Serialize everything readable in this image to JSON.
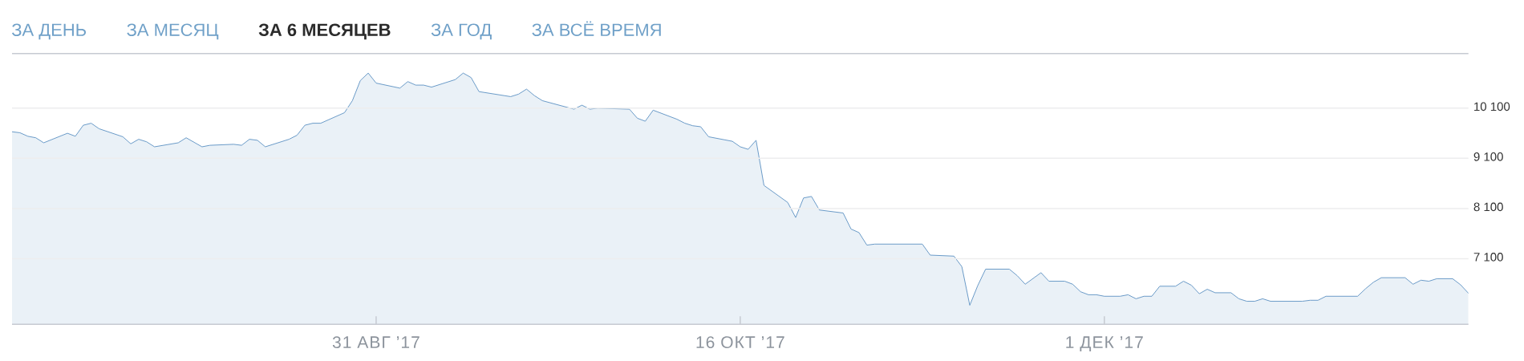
{
  "chart_data": {
    "type": "area",
    "title": "ЗА 6 МЕСЯЦЕВ",
    "annotations": [
      "ЗА ДЕНЬ",
      "ЗА МЕСЯЦ",
      "ЗА ГОД",
      "ЗА ВСЁ ВРЕМЯ"
    ],
    "x": [
      "2017-07-16",
      "2017-07-17",
      "2017-07-18",
      "2017-07-19",
      "2017-07-20",
      "2017-07-23",
      "2017-07-24",
      "2017-07-25",
      "2017-07-26",
      "2017-07-27",
      "2017-07-30",
      "2017-07-31",
      "2017-08-01",
      "2017-08-02",
      "2017-08-03",
      "2017-08-06",
      "2017-08-07",
      "2017-08-09",
      "2017-08-10",
      "2017-08-13",
      "2017-08-14",
      "2017-08-15",
      "2017-08-16",
      "2017-08-17",
      "2017-08-20",
      "2017-08-21",
      "2017-08-22",
      "2017-08-23",
      "2017-08-24",
      "2017-08-27",
      "2017-08-28",
      "2017-08-29",
      "2017-08-30",
      "2017-08-31",
      "2017-09-03",
      "2017-09-04",
      "2017-09-05",
      "2017-09-06",
      "2017-09-07",
      "2017-09-10",
      "2017-09-11",
      "2017-09-12",
      "2017-09-13",
      "2017-09-17",
      "2017-09-18",
      "2017-09-19",
      "2017-09-20",
      "2017-09-21",
      "2017-09-25",
      "2017-09-26",
      "2017-09-27",
      "2017-09-28",
      "2017-10-02",
      "2017-10-03",
      "2017-10-04",
      "2017-10-05",
      "2017-10-08",
      "2017-10-09",
      "2017-10-10",
      "2017-10-11",
      "2017-10-12",
      "2017-10-15",
      "2017-10-16",
      "2017-10-17",
      "2017-10-18",
      "2017-10-19",
      "2017-10-22",
      "2017-10-23",
      "2017-10-24",
      "2017-10-25",
      "2017-10-26",
      "2017-10-29",
      "2017-10-30",
      "2017-10-31",
      "2017-11-01",
      "2017-11-02",
      "2017-11-08",
      "2017-11-09",
      "2017-11-12",
      "2017-11-13",
      "2017-11-14",
      "2017-11-15",
      "2017-11-16",
      "2017-11-19",
      "2017-11-20",
      "2017-11-21",
      "2017-11-23",
      "2017-11-24",
      "2017-11-26",
      "2017-11-27",
      "2017-11-28",
      "2017-11-29",
      "2017-11-30",
      "2017-12-01",
      "2017-12-03",
      "2017-12-04",
      "2017-12-05",
      "2017-12-06",
      "2017-12-07",
      "2017-12-08",
      "2017-12-10",
      "2017-12-11",
      "2017-12-12",
      "2017-12-13",
      "2017-12-14",
      "2017-12-15",
      "2017-12-17",
      "2017-12-18",
      "2017-12-19",
      "2017-12-20",
      "2017-12-21",
      "2017-12-22",
      "2017-12-26",
      "2017-12-27",
      "2017-12-28",
      "2017-12-29",
      "2018-01-02",
      "2018-01-03",
      "2018-01-04",
      "2018-01-05",
      "2018-01-08",
      "2018-01-09",
      "2018-01-10",
      "2018-01-11",
      "2018-01-12",
      "2018-01-14",
      "2018-01-15",
      "2018-01-16"
    ],
    "series": [
      {
        "color": "#6b9bc8",
        "values": [
          9630,
          9610,
          9540,
          9510,
          9410,
          9600,
          9540,
          9760,
          9800,
          9690,
          9530,
          9390,
          9480,
          9430,
          9330,
          9410,
          9510,
          9330,
          9360,
          9380,
          9360,
          9480,
          9460,
          9330,
          9480,
          9560,
          9760,
          9800,
          9800,
          10010,
          10250,
          10650,
          10800,
          10600,
          10500,
          10630,
          10560,
          10560,
          10520,
          10670,
          10800,
          10710,
          10430,
          10330,
          10380,
          10480,
          10350,
          10250,
          10080,
          10160,
          10080,
          10100,
          10080,
          9900,
          9840,
          10060,
          9880,
          9800,
          9750,
          9730,
          9530,
          9440,
          9330,
          9280,
          9460,
          8560,
          8220,
          7920,
          8310,
          8340,
          8070,
          8010,
          7690,
          7620,
          7370,
          7390,
          7390,
          7170,
          7150,
          6940,
          6170,
          6560,
          6890,
          6890,
          6760,
          6590,
          6820,
          6650,
          6650,
          6590,
          6440,
          6380,
          6380,
          6350,
          6350,
          6380,
          6300,
          6350,
          6350,
          6550,
          6550,
          6650,
          6570,
          6400,
          6490,
          6420,
          6420,
          6300,
          6250,
          6250,
          6300,
          6250,
          6250,
          6270,
          6270,
          6350,
          6350,
          6500,
          6630,
          6720,
          6720,
          6590,
          6670,
          6650,
          6700,
          6700,
          6580,
          6410
        ]
      }
    ],
    "xlim": [
      "2017-07-16",
      "2018-01-16"
    ],
    "xticks": [
      {
        "value": "2017-08-31",
        "label": "31 АВГ ’17"
      },
      {
        "value": "2017-10-16",
        "label": "16 ОКТ ’17"
      },
      {
        "value": "2017-12-01",
        "label": "1 ДЕК ’17"
      }
    ],
    "ylim": [
      5790,
      11190
    ],
    "yticks": [
      {
        "value": 7100,
        "label": "7 100"
      },
      {
        "value": 8100,
        "label": "8 100"
      },
      {
        "value": 9100,
        "label": "9 100"
      },
      {
        "value": 10100,
        "label": "10 100"
      }
    ],
    "grid": "y"
  }
}
